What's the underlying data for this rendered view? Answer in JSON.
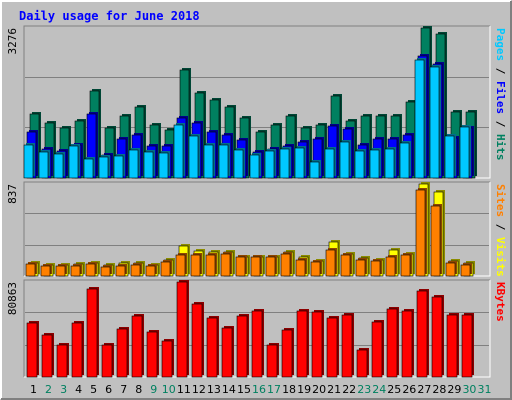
{
  "chart_data": {
    "type": "bar",
    "title": "Daily usage for June 2018",
    "x": [
      "1",
      "2",
      "3",
      "4",
      "5",
      "6",
      "7",
      "8",
      "9",
      "10",
      "11",
      "12",
      "13",
      "14",
      "15",
      "16",
      "17",
      "18",
      "19",
      "20",
      "21",
      "22",
      "23",
      "24",
      "25",
      "26",
      "27",
      "28",
      "29",
      "30",
      "31"
    ],
    "weekend_days": [
      "2",
      "3",
      "9",
      "10",
      "16",
      "17",
      "23",
      "24",
      "30",
      "31"
    ],
    "panels": [
      {
        "id": "hits-files-pages",
        "ymax": 3276,
        "ymax_label": "3276",
        "right_labels": [
          {
            "text": "Pages",
            "color": "#00c8ff"
          },
          {
            "text": " / ",
            "color": "#000000"
          },
          {
            "text": "Files",
            "color": "#0000ff"
          },
          {
            "text": " / ",
            "color": "#000000"
          },
          {
            "text": "Hits",
            "color": "#008060"
          }
        ],
        "series": [
          {
            "name": "Hits",
            "color": "#008060",
            "values": [
              1400,
              1200,
              1100,
              1250,
              1900,
              1100,
              1350,
              1550,
              1150,
              1050,
              2350,
              1850,
              1700,
              1550,
              1300,
              1000,
              1150,
              1350,
              1100,
              1150,
              1800,
              1250,
              1350,
              1350,
              1350,
              1650,
              3280,
              3140,
              1450,
              1450,
              0
            ]
          },
          {
            "name": "Files",
            "color": "#0000ff",
            "values": [
              1000,
              640,
              600,
              720,
              1400,
              510,
              850,
              940,
              700,
              700,
              1300,
              1200,
              1000,
              950,
              830,
              570,
              640,
              700,
              780,
              850,
              1130,
              1080,
              720,
              850,
              860,
              950,
              2660,
              2500,
              880,
              1100,
              0
            ]
          },
          {
            "name": "Pages",
            "color": "#00c8ff",
            "values": [
              720,
              560,
              520,
              700,
              420,
              460,
              470,
              620,
              560,
              540,
              1150,
              920,
              710,
              720,
              620,
              500,
              600,
              640,
              650,
              340,
              640,
              790,
              600,
              620,
              630,
              770,
              2580,
              2420,
              920,
              1120,
              0
            ]
          }
        ]
      },
      {
        "id": "visits-sites",
        "ymax": 837,
        "ymax_label": "837",
        "right_labels": [
          {
            "text": "Sites",
            "color": "#ff8000"
          },
          {
            "text": " / ",
            "color": "#000000"
          },
          {
            "text": "Visits",
            "color": "#ffff00"
          }
        ],
        "series": [
          {
            "name": "Visits",
            "color": "#ffff00",
            "values": [
              120,
              100,
              100,
              110,
              120,
              100,
              120,
              120,
              100,
              145,
              270,
              230,
              220,
              220,
              170,
              170,
              170,
              220,
              170,
              140,
              310,
              200,
              160,
              150,
              240,
              200,
              837,
              760,
              140,
              120,
              0
            ]
          },
          {
            "name": "Sites",
            "color": "#ff8000",
            "values": [
              110,
              90,
              90,
              90,
              110,
              80,
              90,
              100,
              90,
              130,
              190,
              190,
              190,
              200,
              170,
              170,
              170,
              200,
              150,
              130,
              240,
              190,
              150,
              140,
              170,
              190,
              780,
              640,
              120,
              100,
              0
            ]
          }
        ]
      },
      {
        "id": "kbytes",
        "ymax": 80863,
        "ymax_label": "80863",
        "right_labels": [
          {
            "text": "KBytes",
            "color": "#ff0000"
          }
        ],
        "series": [
          {
            "name": "KBytes",
            "color": "#ff0000",
            "values": [
              46000,
              36000,
              27000,
              46000,
              75000,
              27000,
              41000,
              52000,
              38000,
              31000,
              80863,
              62000,
              50000,
              42000,
              52000,
              56000,
              27000,
              40000,
              56000,
              55000,
              50000,
              53000,
              23000,
              47000,
              58000,
              56000,
              73000,
              68000,
              53000,
              53000,
              0
            ]
          }
        ]
      }
    ]
  }
}
